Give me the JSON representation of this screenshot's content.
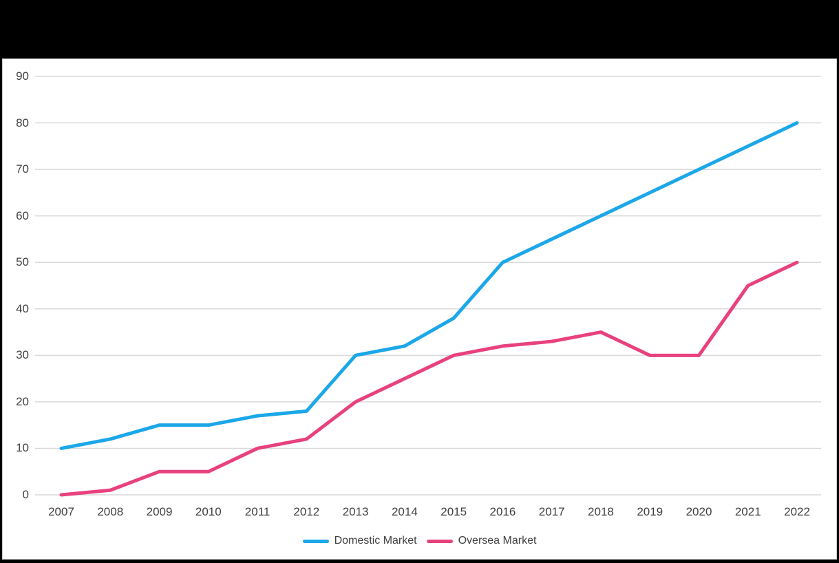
{
  "frame": {
    "background_color": "#000000",
    "panel_color": "#ffffff",
    "panel_border_color": "#cccccc"
  },
  "chart_data": {
    "type": "line",
    "title": "",
    "xlabel": "",
    "ylabel": "",
    "x": [
      "2007",
      "2008",
      "2009",
      "2010",
      "2011",
      "2012",
      "2013",
      "2014",
      "2015",
      "2016",
      "2017",
      "2018",
      "2019",
      "2020",
      "2021",
      "2022"
    ],
    "series": [
      {
        "name": "Domestic Market",
        "color": "#1BA7E8",
        "values": [
          10,
          12,
          15,
          15,
          17,
          18,
          30,
          32,
          38,
          50,
          55,
          60,
          65,
          70,
          75,
          80
        ]
      },
      {
        "name": "Oversea Market",
        "color": "#E8417E",
        "values": [
          0,
          1,
          5,
          5,
          10,
          12,
          20,
          25,
          30,
          32,
          33,
          35,
          30,
          30,
          45,
          50
        ]
      }
    ],
    "ylim": [
      0,
      90
    ],
    "ytick_step": 10,
    "yticks": [
      0,
      10,
      20,
      30,
      40,
      50,
      60,
      70,
      80,
      90
    ],
    "grid": true,
    "gridline_color": "#d9d9d9",
    "text_color": "#404040",
    "line_width": 5,
    "legend_position": "bottom"
  }
}
